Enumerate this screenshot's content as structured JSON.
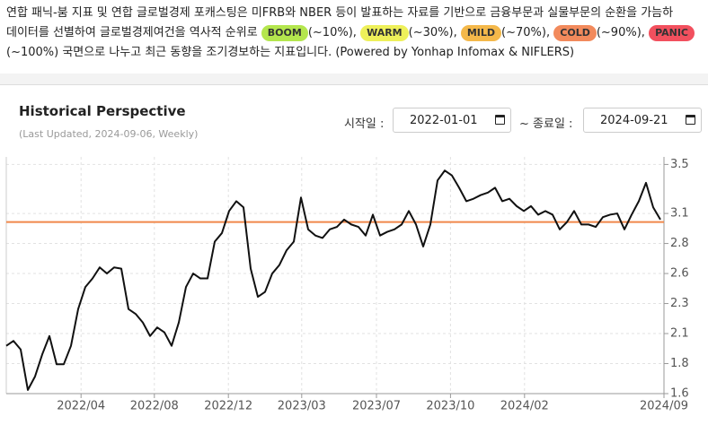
{
  "intro": {
    "line1": "연합 패닉-붐 지표 및 연합 글로벌경제 포캐스팅은 미FRB와 NBER 등이 발표하는 자료를 기반으로 금융부문과 실물부문의 순환을 가늠하",
    "line2": "데이터를 선별하여 글로벌경제여건을 역사적 순위로",
    "badges": [
      {
        "label": "BOOM",
        "range": "(~10%),",
        "color": "#b4e64e"
      },
      {
        "label": "WARM",
        "range": "(~30%),",
        "color": "#eef05a"
      },
      {
        "label": "MILD",
        "range": "(~70%),",
        "color": "#f4b84a"
      },
      {
        "label": "COLD",
        "range": "(~90%),",
        "color": "#f28a5c"
      },
      {
        "label": "PANIC",
        "range": "(~100%)",
        "color": "#f2505e"
      }
    ],
    "tail": "국면으로 나누고 최근 동향을 조기경보하는 지표입니다. (Powered by Yonhap Infomax & NIFLERS)"
  },
  "panel": {
    "title": "Historical Perspective",
    "subtitle": "(Last Updated, 2024-09-06, Weekly)",
    "start_label": "시작일 :",
    "start_date": "2022-01-01",
    "end_label": "~ 종료일 :",
    "end_date": "2024-09-21"
  },
  "chart_data": {
    "type": "line",
    "series": [
      {
        "color": "#111111",
        "values": [
          1.99,
          2.03,
          1.96,
          1.63,
          1.74,
          1.92,
          2.07,
          1.84,
          1.84,
          1.99,
          2.29,
          2.47,
          2.54,
          2.63,
          2.58,
          2.63,
          2.62,
          2.29,
          2.25,
          2.18,
          2.07,
          2.14,
          2.1,
          1.99,
          2.18,
          2.47,
          2.58,
          2.54,
          2.54,
          2.84,
          2.91,
          3.09,
          3.17,
          3.12,
          2.62,
          2.39,
          2.43,
          2.58,
          2.65,
          2.77,
          2.84,
          3.2,
          2.94,
          2.89,
          2.87,
          2.94,
          2.96,
          3.02,
          2.98,
          2.96,
          2.89,
          3.06,
          2.89,
          2.92,
          2.94,
          2.98,
          3.09,
          2.98,
          2.8,
          2.98,
          3.34,
          3.42,
          3.38,
          3.28,
          3.17,
          3.19,
          3.22,
          3.24,
          3.28,
          3.17,
          3.19,
          3.13,
          3.09,
          3.13,
          3.06,
          3.09,
          3.06,
          2.94,
          3.0,
          3.09,
          2.98,
          2.98,
          2.96,
          3.04,
          3.06,
          3.07,
          2.94,
          3.06,
          3.17,
          3.32,
          3.12,
          3.02
        ]
      }
    ],
    "reference_line": {
      "value": 3.0,
      "color": "#f0884a"
    },
    "xlim": [
      0,
      91.5
    ],
    "xticks": [
      {
        "value": 10.4,
        "label": "2022/04"
      },
      {
        "value": 20.6,
        "label": "2022/08"
      },
      {
        "value": 30.9,
        "label": "2022/12"
      },
      {
        "value": 41.1,
        "label": "2023/03"
      },
      {
        "value": 51.5,
        "label": "2023/07"
      },
      {
        "value": 61.8,
        "label": "2023/10"
      },
      {
        "value": 72.1,
        "label": "2024/02"
      },
      {
        "value": 91.5,
        "label": "2024/09"
      }
    ],
    "ylim": [
      1.6,
      3.47
    ],
    "yticks": [
      1.6,
      {
        "value": 1.845,
        "label": "1.8"
      },
      {
        "value": 2.09,
        "label": "2.1"
      },
      {
        "value": 2.335,
        "label": "2.3"
      },
      {
        "value": 2.58,
        "label": "2.6"
      },
      {
        "value": 2.825,
        "label": "2.8"
      },
      {
        "value": 3.07,
        "label": "3.1"
      },
      {
        "value": 3.47,
        "label": "3.5"
      }
    ],
    "grid": true
  }
}
